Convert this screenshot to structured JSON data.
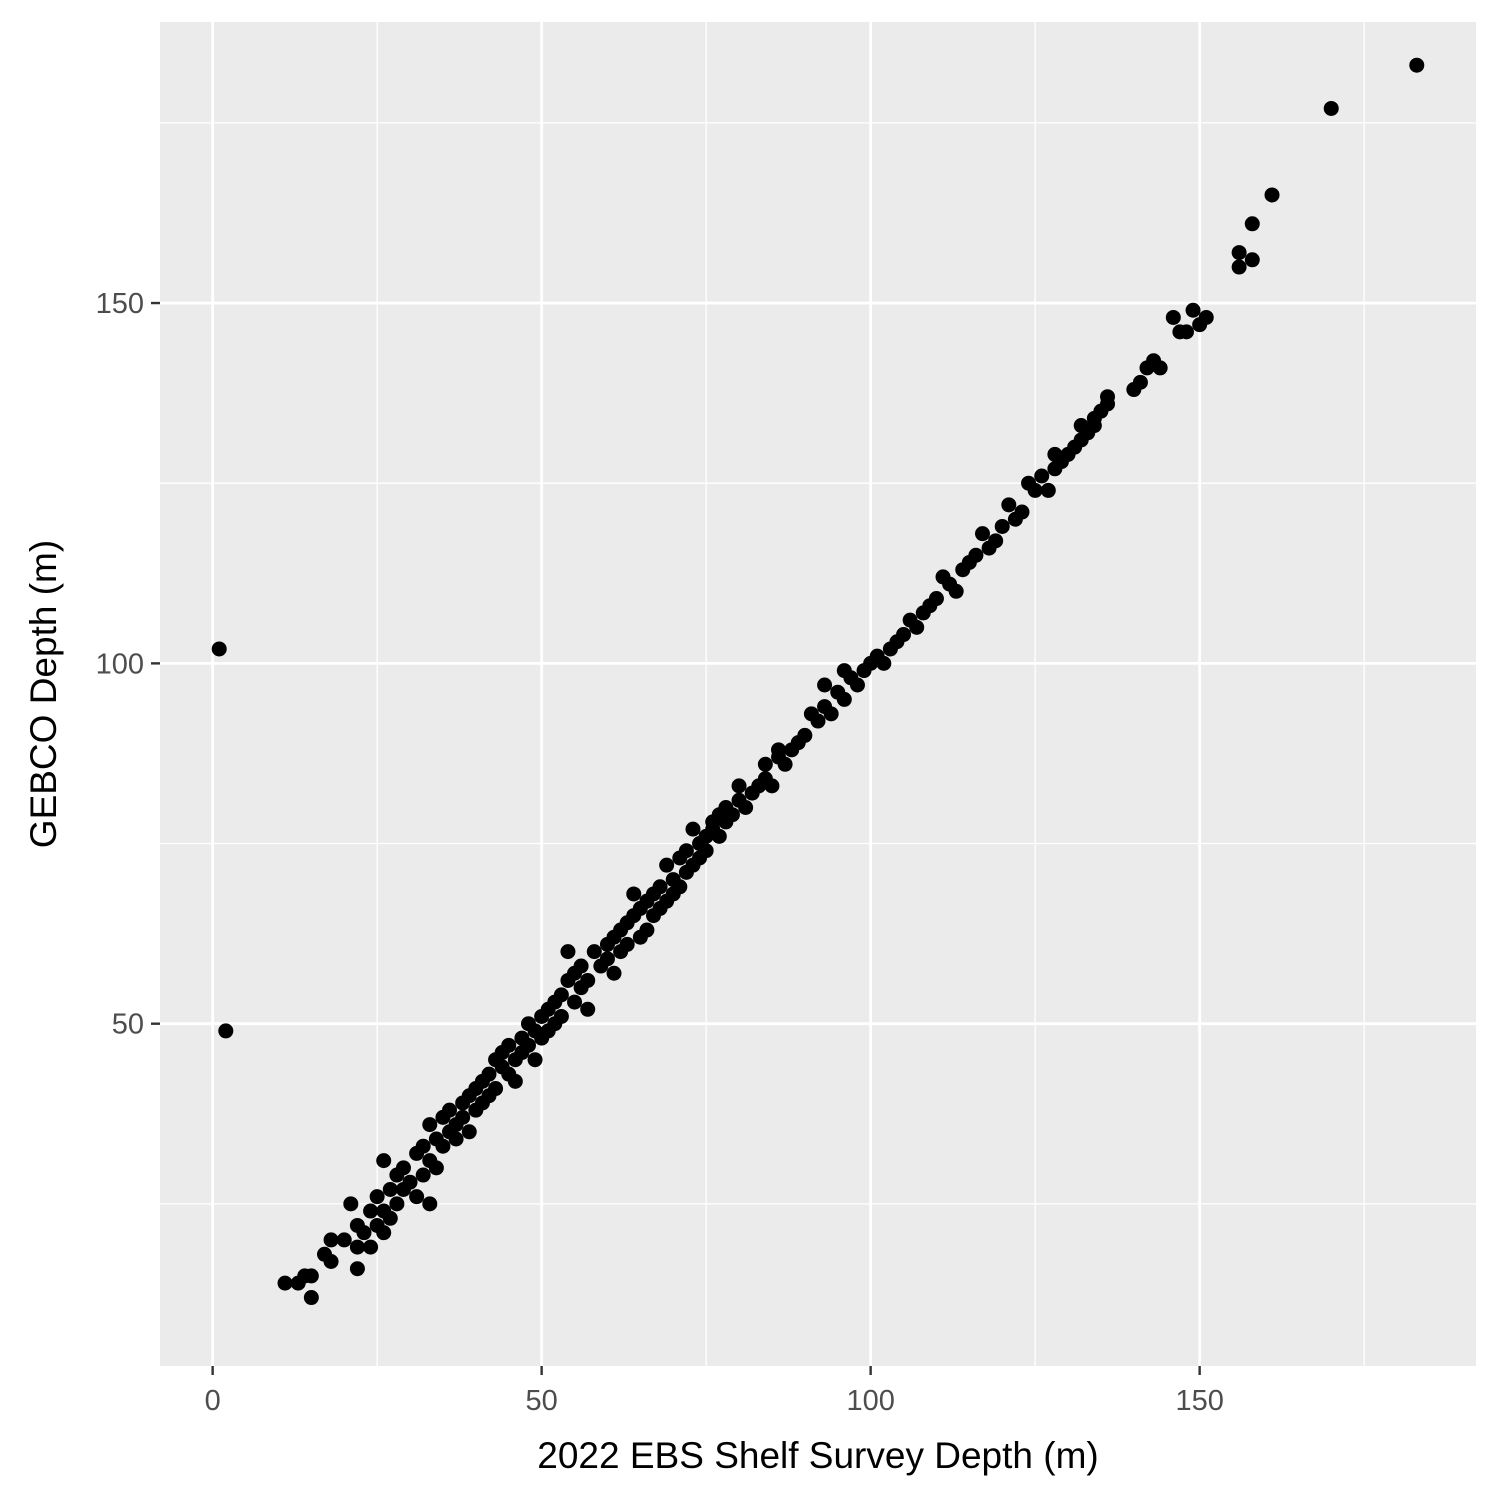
{
  "chart_data": {
    "type": "scatter",
    "title": "",
    "xlabel": "2022 EBS Shelf Survey Depth (m)",
    "ylabel": "GEBCO Depth (m)",
    "xlim": [
      -8,
      192
    ],
    "ylim": [
      2.5,
      189
    ],
    "x_ticks": [
      0,
      50,
      100,
      150
    ],
    "y_ticks": [
      50,
      100,
      150
    ],
    "grid": true,
    "legend": "none",
    "colors": {
      "panel": "#ebebeb",
      "grid": "#ffffff",
      "point": "#000000",
      "tick": "#4d4d4d"
    },
    "points": [
      [
        1,
        102
      ],
      [
        2,
        49
      ],
      [
        11,
        14
      ],
      [
        13,
        14
      ],
      [
        14,
        15
      ],
      [
        15,
        12
      ],
      [
        15,
        15
      ],
      [
        17,
        18
      ],
      [
        18,
        17
      ],
      [
        18,
        20
      ],
      [
        20,
        20
      ],
      [
        21,
        25
      ],
      [
        22,
        19
      ],
      [
        22,
        22
      ],
      [
        22,
        16
      ],
      [
        23,
        21
      ],
      [
        24,
        19
      ],
      [
        24,
        24
      ],
      [
        25,
        22
      ],
      [
        25,
        26
      ],
      [
        26,
        21
      ],
      [
        26,
        24
      ],
      [
        26,
        31
      ],
      [
        27,
        27
      ],
      [
        27,
        23
      ],
      [
        28,
        25
      ],
      [
        28,
        29
      ],
      [
        29,
        27
      ],
      [
        29,
        30
      ],
      [
        30,
        28
      ],
      [
        31,
        32
      ],
      [
        31,
        26
      ],
      [
        32,
        29
      ],
      [
        32,
        33
      ],
      [
        33,
        31
      ],
      [
        33,
        25
      ],
      [
        33,
        36
      ],
      [
        34,
        34
      ],
      [
        34,
        30
      ],
      [
        35,
        37
      ],
      [
        35,
        33
      ],
      [
        36,
        35
      ],
      [
        36,
        38
      ],
      [
        37,
        36
      ],
      [
        37,
        34
      ],
      [
        38,
        39
      ],
      [
        38,
        37
      ],
      [
        39,
        40
      ],
      [
        39,
        35
      ],
      [
        40,
        41
      ],
      [
        40,
        38
      ],
      [
        41,
        42
      ],
      [
        41,
        39
      ],
      [
        42,
        43
      ],
      [
        42,
        40
      ],
      [
        43,
        45
      ],
      [
        43,
        41
      ],
      [
        44,
        44
      ],
      [
        44,
        46
      ],
      [
        45,
        43
      ],
      [
        45,
        47
      ],
      [
        46,
        45
      ],
      [
        46,
        42
      ],
      [
        47,
        46
      ],
      [
        47,
        48
      ],
      [
        48,
        47
      ],
      [
        48,
        50
      ],
      [
        49,
        49
      ],
      [
        49,
        45
      ],
      [
        50,
        51
      ],
      [
        50,
        48
      ],
      [
        51,
        52
      ],
      [
        51,
        49
      ],
      [
        52,
        50
      ],
      [
        52,
        53
      ],
      [
        53,
        54
      ],
      [
        53,
        51
      ],
      [
        54,
        56
      ],
      [
        54,
        60
      ],
      [
        55,
        53
      ],
      [
        55,
        57
      ],
      [
        56,
        55
      ],
      [
        56,
        58
      ],
      [
        57,
        52
      ],
      [
        57,
        56
      ],
      [
        58,
        60
      ],
      [
        59,
        58
      ],
      [
        60,
        61
      ],
      [
        60,
        59
      ],
      [
        61,
        62
      ],
      [
        61,
        57
      ],
      [
        62,
        63
      ],
      [
        62,
        60
      ],
      [
        63,
        64
      ],
      [
        63,
        61
      ],
      [
        64,
        65
      ],
      [
        64,
        68
      ],
      [
        65,
        66
      ],
      [
        65,
        62
      ],
      [
        66,
        63
      ],
      [
        66,
        67
      ],
      [
        67,
        65
      ],
      [
        67,
        68
      ],
      [
        68,
        66
      ],
      [
        68,
        69
      ],
      [
        69,
        72
      ],
      [
        69,
        67
      ],
      [
        70,
        70
      ],
      [
        70,
        68
      ],
      [
        71,
        73
      ],
      [
        71,
        69
      ],
      [
        72,
        71
      ],
      [
        72,
        74
      ],
      [
        73,
        72
      ],
      [
        73,
        77
      ],
      [
        74,
        75
      ],
      [
        74,
        73
      ],
      [
        75,
        76
      ],
      [
        75,
        74
      ],
      [
        76,
        77
      ],
      [
        76,
        78
      ],
      [
        77,
        76
      ],
      [
        77,
        79
      ],
      [
        78,
        78
      ],
      [
        78,
        80
      ],
      [
        79,
        79
      ],
      [
        80,
        81
      ],
      [
        80,
        83
      ],
      [
        81,
        80
      ],
      [
        82,
        82
      ],
      [
        83,
        83
      ],
      [
        84,
        84
      ],
      [
        84,
        86
      ],
      [
        85,
        83
      ],
      [
        86,
        87
      ],
      [
        86,
        88
      ],
      [
        87,
        86
      ],
      [
        88,
        88
      ],
      [
        89,
        89
      ],
      [
        90,
        90
      ],
      [
        91,
        93
      ],
      [
        92,
        92
      ],
      [
        93,
        97
      ],
      [
        93,
        94
      ],
      [
        94,
        93
      ],
      [
        95,
        96
      ],
      [
        96,
        95
      ],
      [
        96,
        99
      ],
      [
        97,
        98
      ],
      [
        98,
        97
      ],
      [
        99,
        99
      ],
      [
        100,
        100
      ],
      [
        101,
        101
      ],
      [
        102,
        100
      ],
      [
        103,
        102
      ],
      [
        104,
        103
      ],
      [
        105,
        104
      ],
      [
        106,
        106
      ],
      [
        107,
        105
      ],
      [
        108,
        107
      ],
      [
        109,
        108
      ],
      [
        110,
        109
      ],
      [
        111,
        112
      ],
      [
        112,
        111
      ],
      [
        113,
        110
      ],
      [
        114,
        113
      ],
      [
        115,
        114
      ],
      [
        116,
        115
      ],
      [
        117,
        118
      ],
      [
        118,
        116
      ],
      [
        119,
        117
      ],
      [
        120,
        119
      ],
      [
        121,
        122
      ],
      [
        122,
        120
      ],
      [
        123,
        121
      ],
      [
        124,
        125
      ],
      [
        125,
        124
      ],
      [
        126,
        126
      ],
      [
        127,
        124
      ],
      [
        128,
        127
      ],
      [
        128,
        129
      ],
      [
        129,
        128
      ],
      [
        130,
        129
      ],
      [
        131,
        130
      ],
      [
        132,
        131
      ],
      [
        132,
        133
      ],
      [
        133,
        132
      ],
      [
        134,
        134
      ],
      [
        134,
        133
      ],
      [
        135,
        135
      ],
      [
        136,
        136
      ],
      [
        136,
        137
      ],
      [
        140,
        138
      ],
      [
        141,
        139
      ],
      [
        142,
        141
      ],
      [
        143,
        142
      ],
      [
        144,
        141
      ],
      [
        146,
        148
      ],
      [
        147,
        146
      ],
      [
        148,
        146
      ],
      [
        149,
        149
      ],
      [
        150,
        147
      ],
      [
        151,
        148
      ],
      [
        156,
        157
      ],
      [
        156,
        155
      ],
      [
        158,
        161
      ],
      [
        158,
        156
      ],
      [
        161,
        165
      ],
      [
        170,
        177
      ],
      [
        183,
        183
      ]
    ]
  }
}
